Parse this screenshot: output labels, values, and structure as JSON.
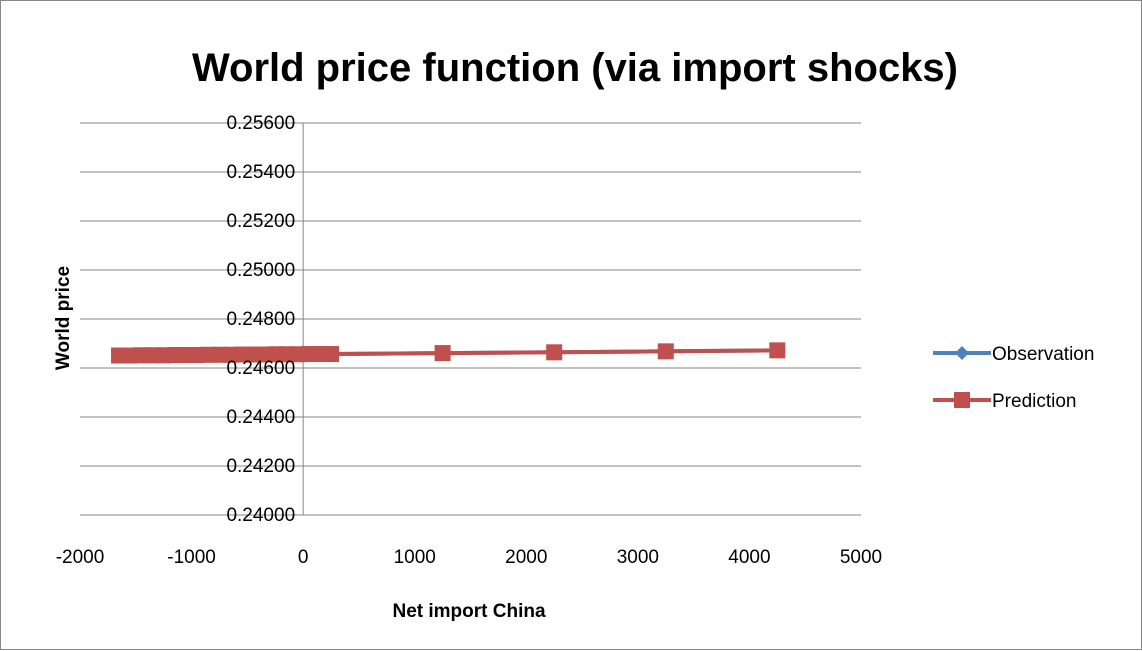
{
  "chart_data": {
    "type": "scatter",
    "title": "World price function (via import shocks)",
    "xlabel": "Net import China",
    "ylabel": "World price",
    "xlim": [
      -2000,
      5000
    ],
    "ylim": [
      0.24,
      0.256
    ],
    "xticks": [
      "-2000",
      "-1000",
      "0",
      "1000",
      "2000",
      "3000",
      "4000",
      "5000"
    ],
    "yticks": [
      "0.24000",
      "0.24200",
      "0.24400",
      "0.24600",
      "0.24800",
      "0.25000",
      "0.25200",
      "0.25400",
      "0.25600"
    ],
    "grid": true,
    "legend_position": "right",
    "series": [
      {
        "name": "Observation",
        "color": "#4f81bd",
        "marker": "diamond",
        "x": [
          -1650,
          -1550,
          -1450,
          -1350,
          -1250,
          -1150,
          -1050,
          -950,
          -850,
          -750,
          -650,
          -550,
          -450,
          -350,
          -250,
          -150,
          -50,
          50,
          150,
          250,
          1250,
          2250,
          3250,
          4250
        ],
        "y": [
          0.24651,
          0.24651,
          0.24652,
          0.24652,
          0.24652,
          0.24653,
          0.24653,
          0.24653,
          0.24654,
          0.24654,
          0.24654,
          0.24655,
          0.24655,
          0.24655,
          0.24656,
          0.24656,
          0.24656,
          0.24657,
          0.24657,
          0.24657,
          0.24661,
          0.24664,
          0.24668,
          0.24672
        ]
      },
      {
        "name": "Prediction",
        "color": "#c0504d",
        "marker": "square",
        "x": [
          -1650,
          -1550,
          -1450,
          -1350,
          -1250,
          -1150,
          -1050,
          -950,
          -850,
          -750,
          -650,
          -550,
          -450,
          -350,
          -250,
          -150,
          -50,
          50,
          150,
          250,
          1250,
          2250,
          3250,
          4250
        ],
        "y": [
          0.24651,
          0.24651,
          0.24652,
          0.24652,
          0.24652,
          0.24653,
          0.24653,
          0.24653,
          0.24654,
          0.24654,
          0.24654,
          0.24655,
          0.24655,
          0.24655,
          0.24656,
          0.24656,
          0.24656,
          0.24657,
          0.24657,
          0.24657,
          0.24661,
          0.24664,
          0.24668,
          0.24672
        ]
      }
    ]
  }
}
